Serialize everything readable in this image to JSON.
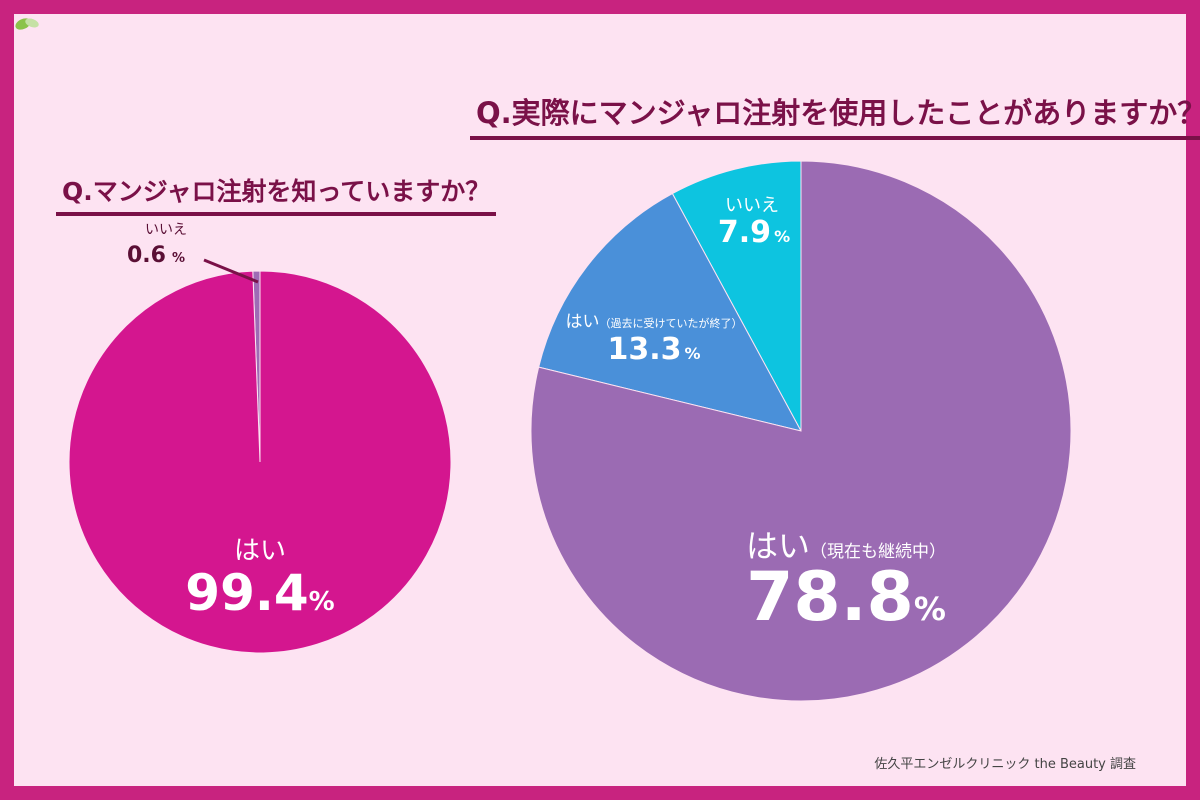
{
  "chart_data": [
    {
      "type": "pie",
      "title": "Q.マンジャロ注射を知っていますか？",
      "slices": [
        {
          "label": "はい",
          "value": 99.4,
          "color": "#d4168f"
        },
        {
          "label": "いいえ",
          "value": 0.6,
          "color": "#9e6bb5"
        }
      ]
    },
    {
      "type": "pie",
      "title": "Q.実際にマンジャロ注射を使用したことがありますか？",
      "slices": [
        {
          "label": "はい",
          "sublabel": "（現在も継続中）",
          "value": 78.8,
          "color": "#9b6bb3"
        },
        {
          "label": "はい",
          "sublabel": "（過去に受けていたが終了）",
          "value": 13.3,
          "color": "#4a90d9"
        },
        {
          "label": "いいえ",
          "value": 7.9,
          "color": "#0dc4e0"
        }
      ]
    }
  ],
  "percent_sign": "%",
  "credit": "佐久平エンゼルクリニック the Beauty 調査",
  "icons": {
    "credit": "leaf-icon"
  }
}
